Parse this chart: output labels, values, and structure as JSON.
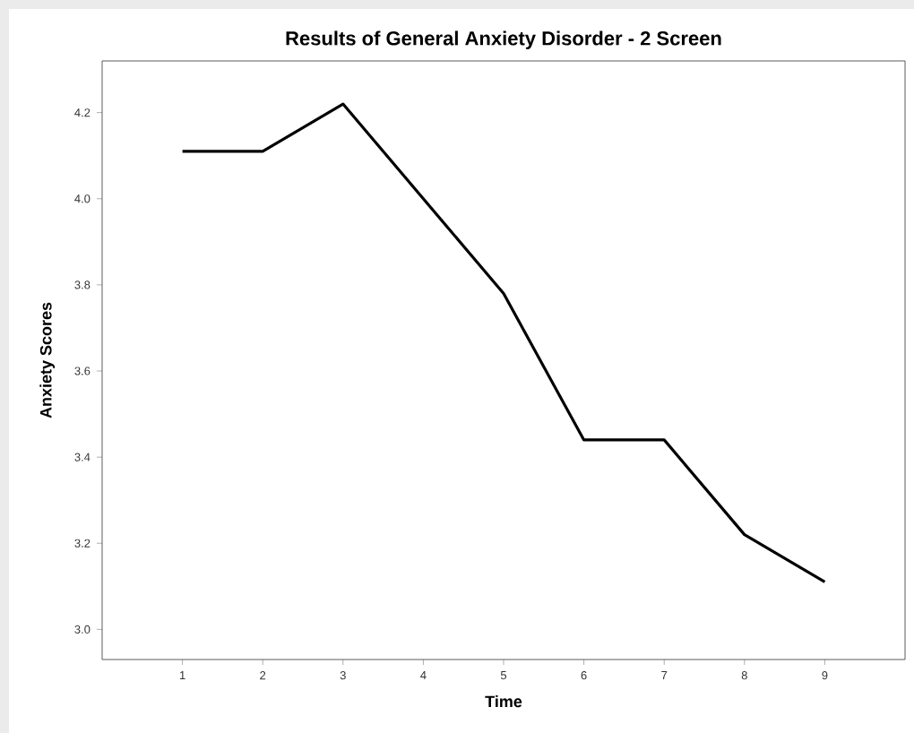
{
  "chart_data": {
    "type": "line",
    "title": "Results of General Anxiety Disorder - 2 Screen",
    "xlabel": "Time",
    "ylabel": "Anxiety Scores",
    "x": [
      1,
      2,
      3,
      4,
      5,
      6,
      7,
      8,
      9
    ],
    "series": [
      {
        "color": "#000000",
        "values": [
          4.11,
          4.11,
          4.22,
          4.0,
          3.78,
          3.44,
          3.44,
          3.22,
          3.11
        ]
      }
    ],
    "xlim": [
      0,
      10
    ],
    "ylim": [
      2.93,
      4.32
    ],
    "xticks": [
      1,
      2,
      3,
      4,
      5,
      6,
      7,
      8,
      9
    ],
    "yticks": [
      {
        "value": 3.0,
        "label": "3.0"
      },
      {
        "value": 3.2,
        "label": "3.2"
      },
      {
        "value": 3.4,
        "label": "3.4"
      },
      {
        "value": 3.6,
        "label": "3.6"
      },
      {
        "value": 3.8,
        "label": "3.8"
      },
      {
        "value": 4.0,
        "label": "4.0"
      },
      {
        "value": 4.2,
        "label": "4.2"
      }
    ],
    "grid": false,
    "marker": "none",
    "line_style": "solid"
  }
}
